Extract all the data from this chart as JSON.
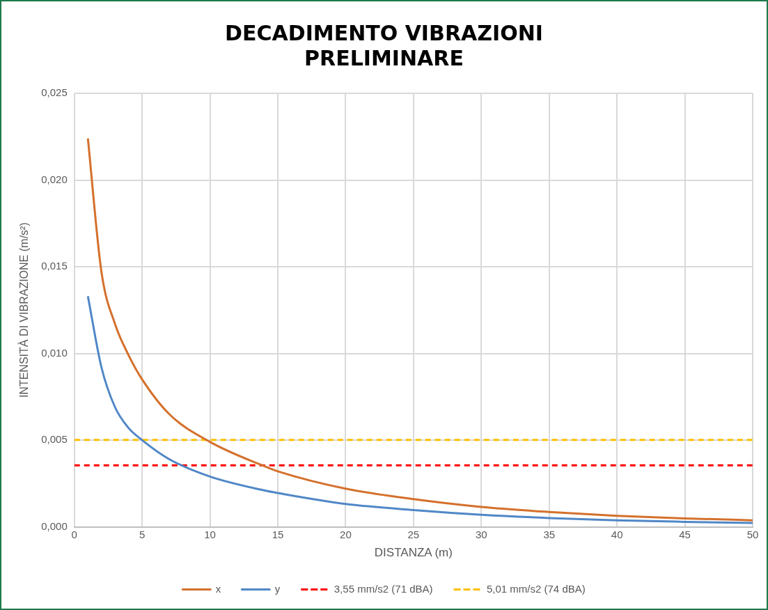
{
  "chart_data": {
    "type": "line",
    "title": "DECADIMENTO VIBRAZIONI\nPRELIMINARE",
    "xlabel": "DISTANZA (m)",
    "ylabel": "INTENSITÀ DI VIBRAZIONE (m/s²)",
    "x": [
      1,
      2,
      3,
      4,
      5,
      7,
      10,
      14,
      15,
      20,
      25,
      30,
      35,
      40,
      45,
      50
    ],
    "series": [
      {
        "name": "x",
        "color": "#d4702c",
        "values": [
          0.0224,
          0.0147,
          0.0117,
          0.0099,
          0.0085,
          0.0065,
          0.0049,
          0.0035,
          0.0032,
          0.0022,
          0.0016,
          0.00115,
          0.00086,
          0.00064,
          0.00049,
          0.00038
        ]
      },
      {
        "name": "y",
        "color": "#5087c7",
        "values": [
          0.0133,
          0.0092,
          0.0069,
          0.0057,
          0.005,
          0.0039,
          0.0029,
          0.0021,
          0.00195,
          0.00132,
          0.00097,
          0.0007,
          0.00051,
          0.00038,
          0.00029,
          0.00022
        ]
      }
    ],
    "ref_lines": [
      {
        "axis": "y",
        "value": 0.00355,
        "label": "3,55 mm/s2 (71 dBA)",
        "color": "#ff0000",
        "line_style": "dashed"
      },
      {
        "axis": "y",
        "value": 0.00501,
        "label": "5,01 mm/s2 (74 dBA)",
        "color": "#ffc000",
        "line_style": "dashed"
      }
    ],
    "xlim": [
      0,
      50
    ],
    "xticks": [
      0,
      5,
      10,
      15,
      20,
      25,
      30,
      35,
      40,
      45,
      50
    ],
    "ylim": [
      0,
      0.025
    ],
    "yticks": [
      {
        "value": 0,
        "label": "0,000"
      },
      {
        "value": 0.005,
        "label": "0,005"
      },
      {
        "value": 0.01,
        "label": "0,010"
      },
      {
        "value": 0.015,
        "label": "0,015"
      },
      {
        "value": 0.02,
        "label": "0,020"
      },
      {
        "value": 0.025,
        "label": "0,025"
      }
    ],
    "grid": true,
    "legend": "bottom",
    "marker": "none",
    "line_style": "solid"
  }
}
